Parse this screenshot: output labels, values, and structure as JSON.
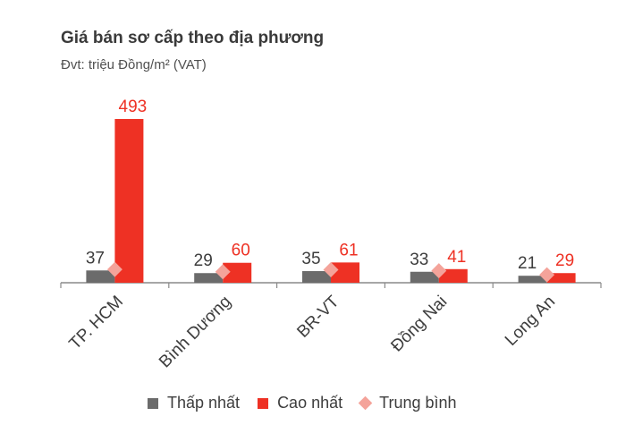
{
  "title": "Giá bán sơ cấp theo địa phương",
  "subtitle": "Đvt: triệu Đồng/m² (VAT)",
  "colors": {
    "min": "#6b6b6b",
    "max": "#ee3124",
    "avg": "#f4a39a",
    "axis": "#8a8a8a",
    "label": "#3d3d3d"
  },
  "legend": [
    {
      "label": "Thấp nhất",
      "color": "#6b6b6b",
      "shape": "square"
    },
    {
      "label": "Cao nhất",
      "color": "#ee3124",
      "shape": "square"
    },
    {
      "label": "Trung bình",
      "color": "#f4a39a",
      "shape": "diamond"
    }
  ],
  "chart_data": {
    "type": "bar",
    "title": "Giá bán sơ cấp theo địa phương",
    "subtitle": "Đvt: triệu Đồng/m² (VAT)",
    "categories": [
      "TP. HCM",
      "Bình Dương",
      "BR-VT",
      "Đồng Nai",
      "Long An"
    ],
    "series": [
      {
        "name": "Thấp nhất",
        "values": [
          37,
          29,
          35,
          33,
          21
        ]
      },
      {
        "name": "Cao nhất",
        "values": [
          493,
          60,
          61,
          41,
          29
        ]
      }
    ],
    "average_markers": {
      "name": "Trung bình",
      "values": [
        40,
        33,
        39,
        36,
        24
      ]
    },
    "ylim": [
      0,
      500
    ],
    "grid": false,
    "legend_position": "bottom"
  }
}
